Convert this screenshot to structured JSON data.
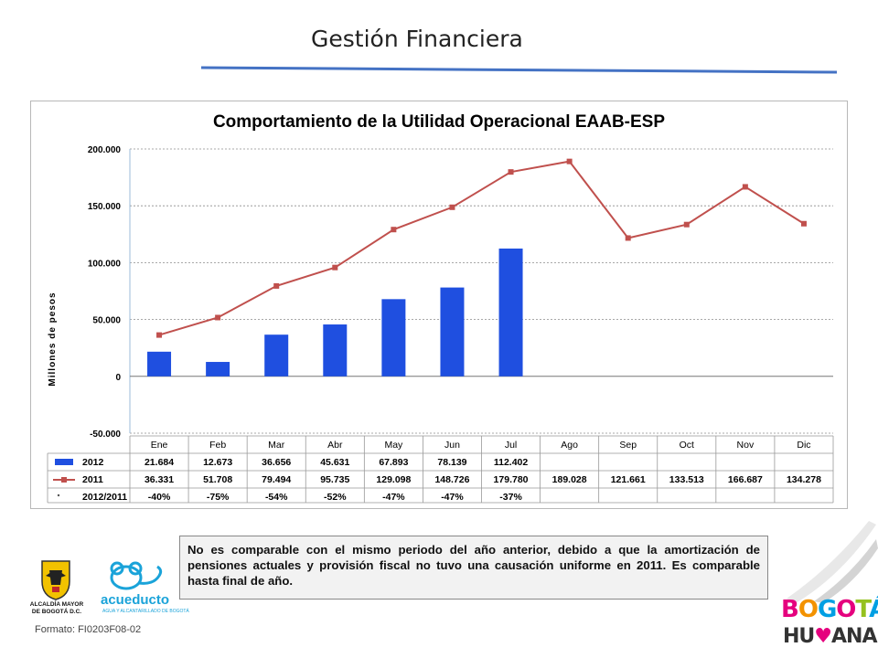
{
  "slide": {
    "title": "Gestión Financiera",
    "note": "No es comparable con el mismo periodo del año anterior, debido a que la amortización de pensiones actuales y provisión fiscal no tuvo una causación uniforme en 2011.  Es comparable hasta final de año.",
    "footer_code": "Formato: FI0203F08-02",
    "logos": {
      "alcaldia_line1": "ALCALDÍA MAYOR",
      "alcaldia_line2": "DE BOGOTÁ D.C.",
      "acueducto": "acueducto",
      "acueducto_sub": "AGUA Y ALCANTARILLADO DE BOGOTÁ",
      "bogota_line1": "BOGOTÁ",
      "bogota_line2": "HUMANA"
    },
    "colors": {
      "rule": "#4472c4",
      "bar": "#1f4fe0",
      "line": "#c0504d",
      "grid": "#8c8c8c"
    }
  },
  "chart_data": {
    "type": "bar",
    "title": "Comportamiento de la Utilidad Operacional EAAB-ESP",
    "ylabel": "Millones de pesos",
    "xlabel": "",
    "ylim": [
      -50000,
      200000
    ],
    "yticks": [
      200000,
      150000,
      100000,
      50000,
      0,
      -50000
    ],
    "ytick_labels": [
      "200.000",
      "150.000",
      "100.000",
      "50.000",
      "0",
      "-50.000"
    ],
    "grid": true,
    "legend": "data-table",
    "categories": [
      "Ene",
      "Feb",
      "Mar",
      "Abr",
      "May",
      "Jun",
      "Jul",
      "Ago",
      "Sep",
      "Oct",
      "Nov",
      "Dic"
    ],
    "series": [
      {
        "name": "2012",
        "type": "bar",
        "values": [
          21684,
          12673,
          36656,
          45631,
          67893,
          78139,
          112402,
          null,
          null,
          null,
          null,
          null
        ],
        "labels": [
          "21.684",
          "12.673",
          "36.656",
          "45.631",
          "67.893",
          "78.139",
          "112.402",
          "",
          "",
          "",
          "",
          ""
        ]
      },
      {
        "name": "2011",
        "type": "line",
        "values": [
          36331,
          51708,
          79494,
          95735,
          129098,
          148726,
          179780,
          189028,
          121661,
          133513,
          166687,
          134278
        ],
        "labels": [
          "36.331",
          "51.708",
          "79.494",
          "95.735",
          "129.098",
          "148.726",
          "179.780",
          "189.028",
          "121.661",
          "133.513",
          "166.687",
          "134.278"
        ]
      },
      {
        "name": "2012/2011",
        "type": "ratio",
        "values": [
          -40,
          -75,
          -54,
          -52,
          -47,
          -47,
          -37,
          null,
          null,
          null,
          null,
          null
        ],
        "labels": [
          "-40%",
          "-75%",
          "-54%",
          "-52%",
          "-47%",
          "-47%",
          "-37%",
          "",
          "",
          "",
          "",
          ""
        ]
      }
    ]
  }
}
